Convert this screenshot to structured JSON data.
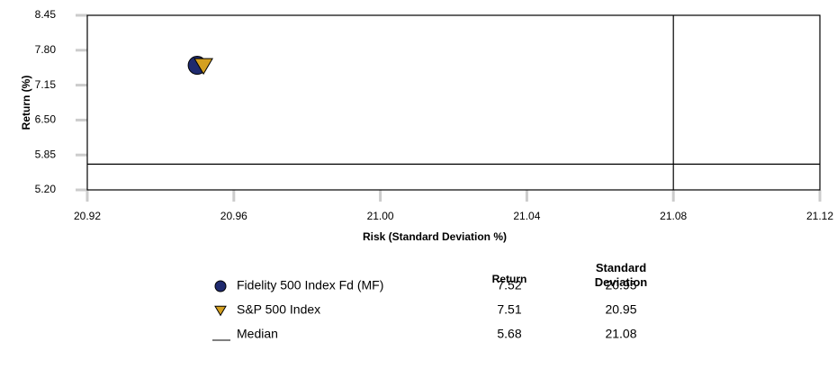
{
  "chart_data": {
    "type": "scatter",
    "x_label": "Risk (Standard Deviation %)",
    "y_label": "Return (%)",
    "xlim": [
      20.92,
      21.12
    ],
    "ylim": [
      5.2,
      8.45
    ],
    "xticks": [
      20.92,
      20.96,
      {
        "value": 21.0,
        "label": "21.00"
      },
      21.04,
      21.08,
      21.12
    ],
    "yticks": [
      {
        "value": 5.2,
        "label": "5.20"
      },
      5.85,
      {
        "value": 6.5,
        "label": "6.50"
      },
      7.15,
      {
        "value": 7.8,
        "label": "7.80"
      },
      8.45
    ],
    "series": [
      {
        "name": "Fidelity 500 Index Fd (MF)",
        "color": "#1f2a6e",
        "marker": "circle",
        "x": [
          20.95
        ],
        "values": [
          7.52
        ]
      },
      {
        "name": "S&P 500 Index",
        "color": "#d4a020",
        "marker": "triangle",
        "x": [
          20.95
        ],
        "values": [
          7.51
        ]
      }
    ],
    "median": {
      "name": "Median",
      "color": "#000000",
      "x": [
        21.08
      ],
      "values": [
        5.68
      ]
    },
    "table_headers": [
      "Return",
      "Standard Deviation"
    ]
  }
}
